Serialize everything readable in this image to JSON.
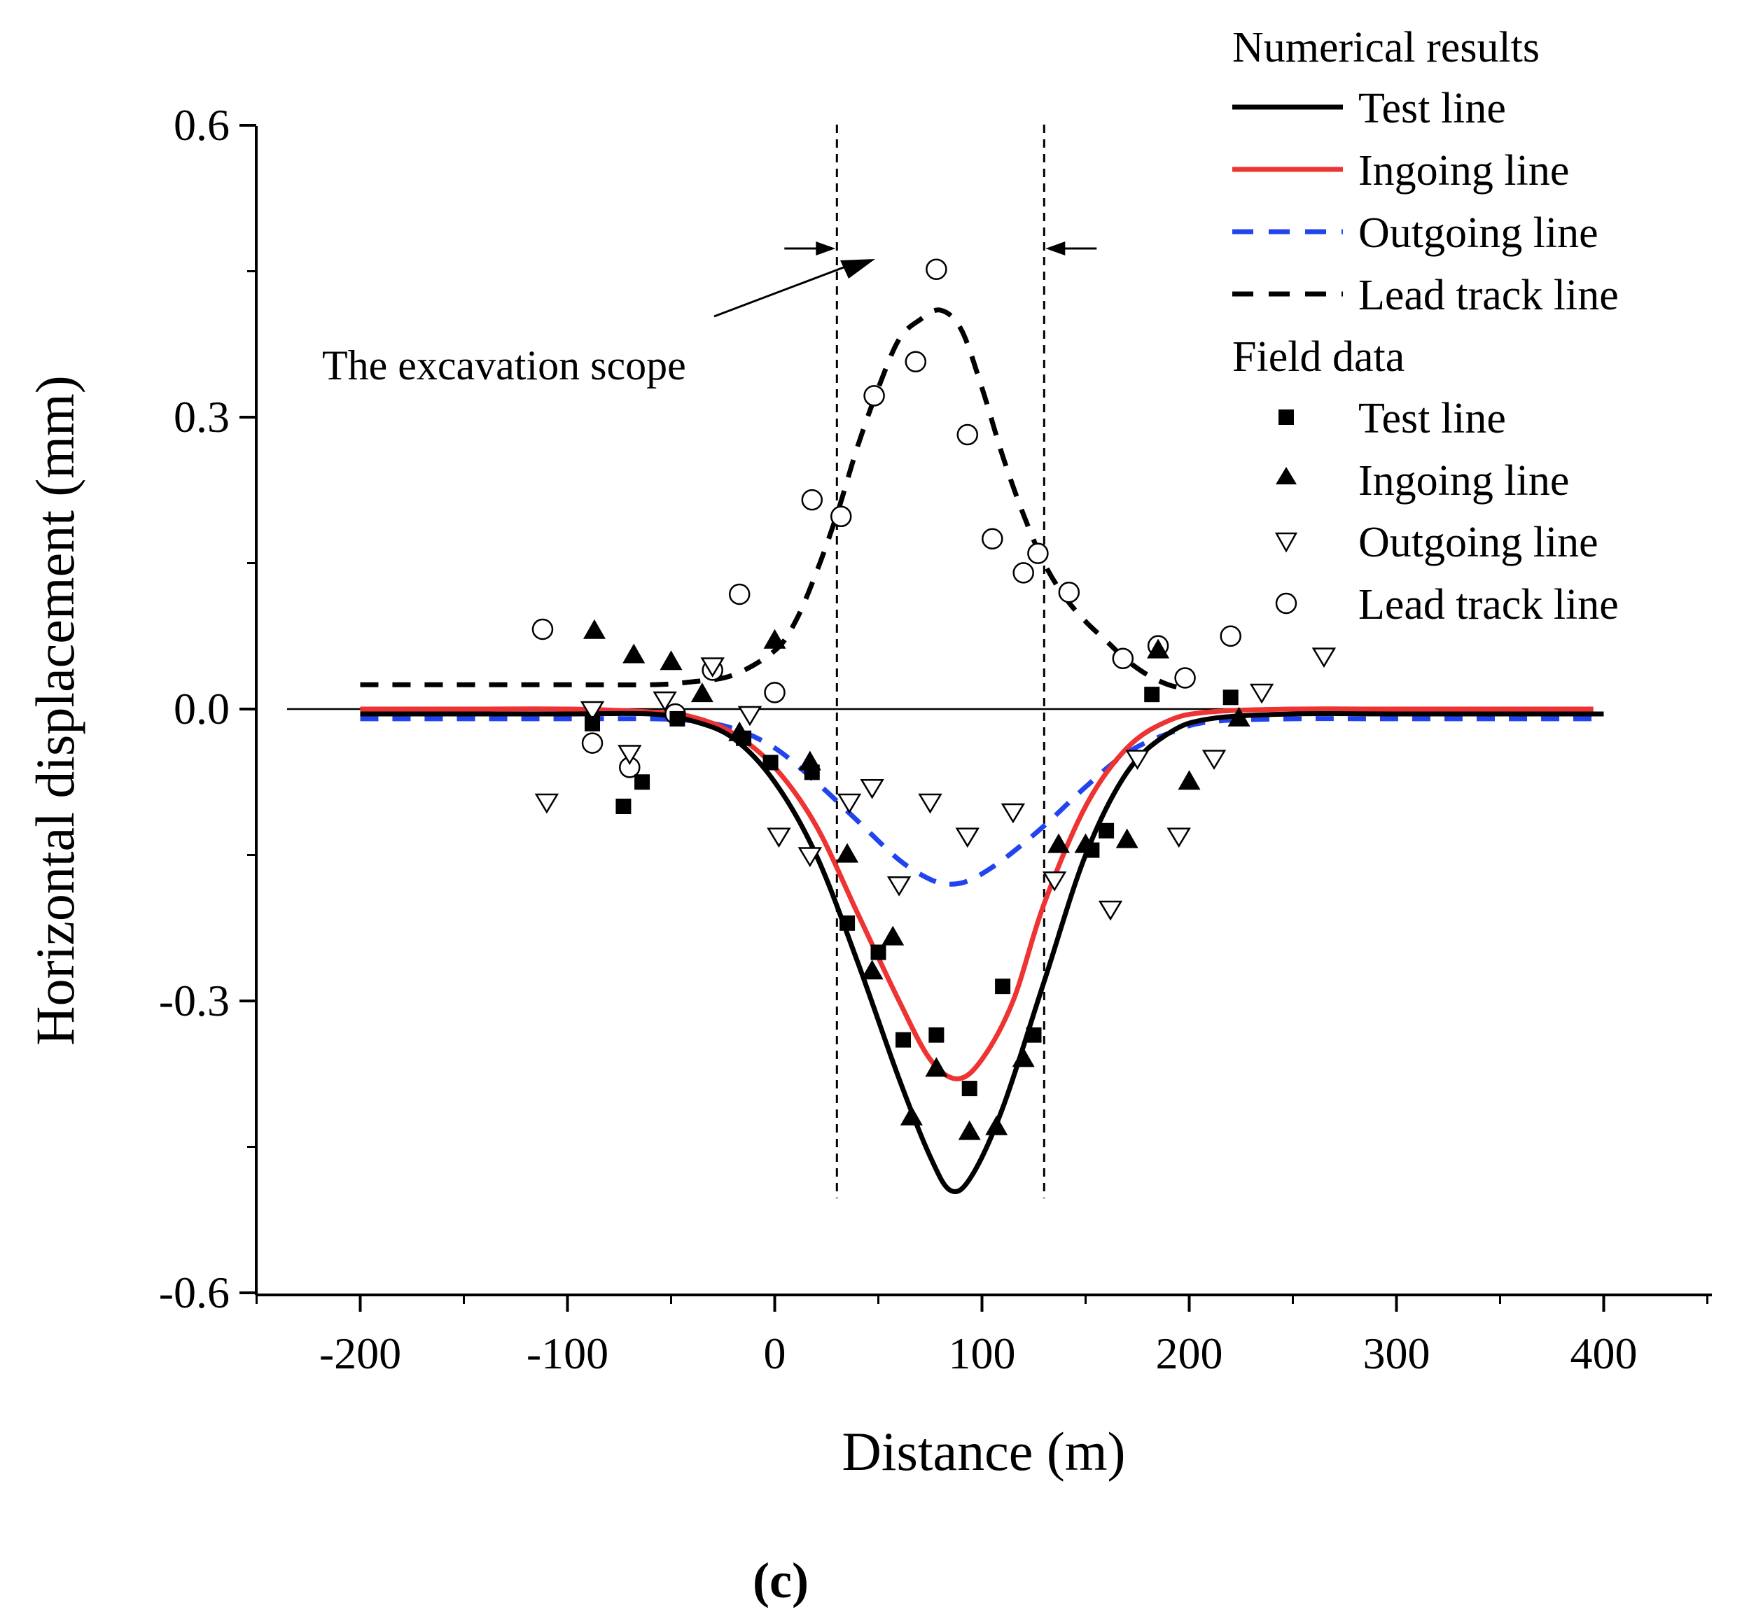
{
  "chart_data": {
    "type": "scatter",
    "panel_label": "(c)",
    "xlabel": "Distance (m)",
    "ylabel": "Horizontal displacement (mm)",
    "xlim": [
      -250,
      450
    ],
    "ylim": [
      -0.6,
      0.6
    ],
    "xticks": [
      -200,
      -100,
      0,
      100,
      200,
      300,
      400
    ],
    "xtick_labels": [
      "-200",
      "-100",
      "0",
      "100",
      "200",
      "300",
      "400"
    ],
    "yticks": [
      -0.6,
      -0.3,
      0.0,
      0.3,
      0.6
    ],
    "ytick_labels": [
      "-0.6",
      "-0.3",
      "0.0",
      "0.3",
      "0.6"
    ],
    "excavation_bounds": [
      30,
      130
    ],
    "annotation": "The excavation scope",
    "legend": {
      "position": "top-right",
      "numerical_title": "Numerical results",
      "field_title": "Field data",
      "numerical_entries": [
        "Test line",
        "Ingoing line",
        "Outgoing line",
        "Lead track line"
      ],
      "field_entries": [
        "Test line",
        "Ingoing line",
        "Outgoing line",
        "Lead track line"
      ]
    },
    "colors": {
      "test": "#000000",
      "ingoing": "#ee3333",
      "outgoing": "#2244ee",
      "lead": "#000000"
    },
    "numerical_series": [
      {
        "name": "Test line",
        "x": [
          -200,
          -150,
          -100,
          -60,
          -40,
          -20,
          0,
          20,
          40,
          60,
          75,
          85,
          95,
          110,
          130,
          150,
          170,
          190,
          210,
          250,
          300,
          400
        ],
        "y": [
          -0.005,
          -0.005,
          -0.005,
          -0.005,
          -0.012,
          -0.03,
          -0.075,
          -0.15,
          -0.26,
          -0.38,
          -0.46,
          -0.495,
          -0.48,
          -0.41,
          -0.28,
          -0.15,
          -0.065,
          -0.025,
          -0.01,
          -0.005,
          -0.005,
          -0.005
        ]
      },
      {
        "name": "Ingoing line",
        "x": [
          -200,
          -150,
          -100,
          -60,
          -40,
          -20,
          0,
          20,
          40,
          60,
          75,
          88,
          100,
          115,
          130,
          150,
          170,
          190,
          210,
          250,
          300,
          395
        ],
        "y": [
          0,
          0,
          0,
          -0.003,
          -0.008,
          -0.025,
          -0.06,
          -0.12,
          -0.21,
          -0.3,
          -0.36,
          -0.38,
          -0.36,
          -0.3,
          -0.2,
          -0.1,
          -0.04,
          -0.012,
          -0.003,
          0,
          0,
          0
        ]
      },
      {
        "name": "Outgoing line",
        "x": [
          -200,
          -100,
          -60,
          -40,
          -20,
          0,
          20,
          40,
          60,
          75,
          85,
          95,
          110,
          130,
          150,
          170,
          190,
          210,
          250,
          300,
          395
        ],
        "y": [
          -0.01,
          -0.01,
          -0.01,
          -0.012,
          -0.02,
          -0.04,
          -0.075,
          -0.115,
          -0.155,
          -0.175,
          -0.18,
          -0.175,
          -0.155,
          -0.12,
          -0.08,
          -0.045,
          -0.025,
          -0.013,
          -0.01,
          -0.01,
          -0.01
        ]
      },
      {
        "name": "Lead track line",
        "x": [
          -200,
          -100,
          -60,
          -40,
          -20,
          0,
          10,
          20,
          30,
          40,
          50,
          60,
          70,
          80,
          90,
          100,
          110,
          120,
          130,
          140,
          150,
          160,
          170,
          180,
          190,
          200
        ],
        "y": [
          0.025,
          0.025,
          0.025,
          0.028,
          0.035,
          0.06,
          0.09,
          0.14,
          0.2,
          0.27,
          0.33,
          0.38,
          0.4,
          0.41,
          0.39,
          0.33,
          0.26,
          0.2,
          0.15,
          0.115,
          0.09,
          0.07,
          0.05,
          0.035,
          0.025,
          0.02
        ]
      }
    ],
    "field_series": [
      {
        "name": "Test line",
        "marker": "square",
        "x": [
          -88,
          -73,
          -64,
          -47,
          -15,
          -2,
          18,
          35,
          50,
          62,
          78,
          94,
          110,
          125,
          153,
          160,
          182,
          220
        ],
        "y": [
          -0.015,
          -0.1,
          -0.075,
          -0.01,
          -0.03,
          -0.055,
          -0.065,
          -0.22,
          -0.25,
          -0.34,
          -0.335,
          -0.39,
          -0.285,
          -0.335,
          -0.145,
          -0.125,
          0.015,
          0.012
        ]
      },
      {
        "name": "Ingoing line",
        "marker": "triangle",
        "x": [
          -87,
          -68,
          -50,
          -35,
          -17,
          0,
          17,
          35,
          47,
          57,
          66,
          78,
          94,
          107,
          120,
          137,
          150,
          170,
          185,
          200,
          224
        ],
        "y": [
          0.08,
          0.055,
          0.048,
          0.015,
          -0.025,
          0.07,
          -0.055,
          -0.15,
          -0.27,
          -0.235,
          -0.42,
          -0.37,
          -0.435,
          -0.43,
          -0.36,
          -0.14,
          -0.14,
          -0.135,
          0.06,
          -0.075,
          -0.01
        ]
      },
      {
        "name": "Outgoing line",
        "marker": "triangle-down",
        "x": [
          -110,
          -88,
          -70,
          -53,
          -30,
          -12,
          2,
          17,
          36,
          47,
          60,
          75,
          93,
          115,
          135,
          162,
          175,
          195,
          212,
          235,
          265
        ],
        "y": [
          -0.095,
          0.0,
          -0.045,
          0.01,
          0.045,
          -0.005,
          -0.13,
          -0.15,
          -0.095,
          -0.08,
          -0.18,
          -0.095,
          -0.13,
          -0.105,
          -0.175,
          -0.205,
          -0.05,
          -0.13,
          -0.05,
          0.018,
          0.055
        ]
      },
      {
        "name": "Lead track line",
        "marker": "circle",
        "x": [
          -112,
          -88,
          -70,
          -48,
          -17,
          -30,
          0,
          18,
          32,
          48,
          68,
          78,
          93,
          105,
          120,
          127,
          142,
          168,
          185,
          198,
          220
        ],
        "y": [
          0.082,
          -0.035,
          -0.06,
          -0.005,
          0.118,
          0.04,
          0.017,
          0.215,
          0.198,
          0.322,
          0.357,
          0.452,
          0.282,
          0.175,
          0.14,
          0.16,
          0.12,
          0.052,
          0.065,
          0.032,
          0.075
        ]
      }
    ]
  }
}
